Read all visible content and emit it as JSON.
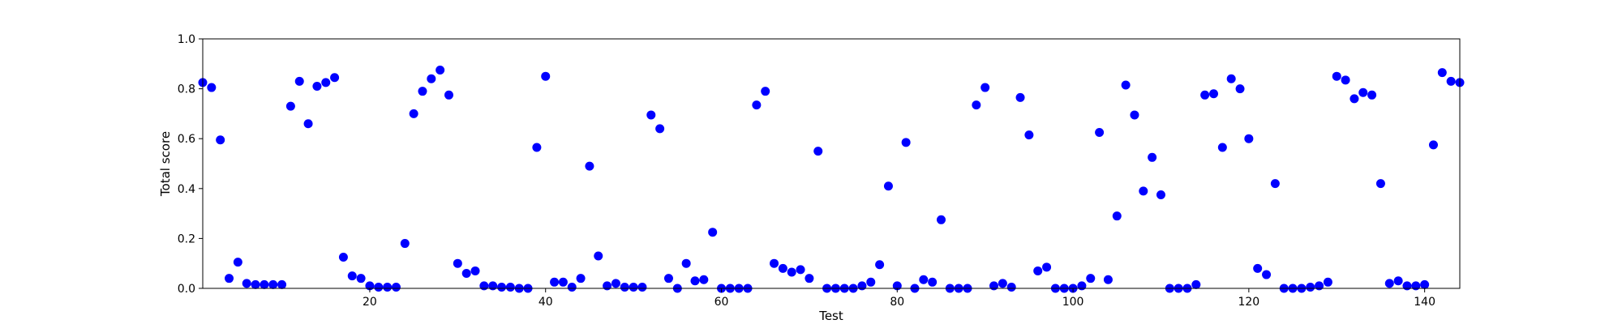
{
  "chart_data": {
    "type": "scatter",
    "title": "",
    "xlabel": "Test",
    "ylabel": "Total score",
    "xlim": [
      1,
      144
    ],
    "ylim": [
      0.0,
      1.0
    ],
    "xticks": [
      20,
      40,
      60,
      80,
      100,
      120,
      140
    ],
    "xtick_labels": [
      "20",
      "40",
      "60",
      "80",
      "100",
      "120",
      "140"
    ],
    "yticks": [
      0.0,
      0.2,
      0.4,
      0.6,
      0.8,
      1.0
    ],
    "ytick_labels": [
      "0.0",
      "0.2",
      "0.4",
      "0.6",
      "0.8",
      "1.0"
    ],
    "grid": false,
    "marker_color": "#0000ff",
    "series": [
      {
        "x": [
          1,
          2,
          3,
          4,
          5,
          6,
          7,
          8,
          9,
          10,
          11,
          12,
          13,
          14,
          15,
          16,
          17,
          18,
          19,
          20,
          21,
          22,
          23,
          24,
          25,
          26,
          27,
          28,
          29,
          30,
          31,
          32,
          33,
          34,
          35,
          36,
          37,
          38,
          39,
          40,
          41,
          42,
          43,
          44,
          45,
          46,
          47,
          48,
          49,
          50,
          51,
          52,
          53,
          54,
          55,
          56,
          57,
          58,
          59,
          60,
          61,
          62,
          63,
          64,
          65,
          66,
          67,
          68,
          69,
          70,
          71,
          72,
          73,
          74,
          75,
          76,
          77,
          78,
          79,
          80,
          81,
          82,
          83,
          84,
          85,
          86,
          87,
          88,
          89,
          90,
          91,
          92,
          93,
          94,
          95,
          96,
          97,
          98,
          99,
          100,
          101,
          102,
          103,
          104,
          105,
          106,
          107,
          108,
          109,
          110,
          111,
          112,
          113,
          114,
          115,
          116,
          117,
          118,
          119,
          120,
          121,
          122,
          123,
          124,
          125,
          126,
          127,
          128,
          129,
          130,
          131,
          132,
          133,
          134,
          135,
          136,
          137,
          138,
          139,
          140,
          141,
          142,
          143,
          144
        ],
        "y": [
          0.825,
          0.805,
          0.595,
          0.04,
          0.105,
          0.02,
          0.015,
          0.015,
          0.015,
          0.015,
          0.73,
          0.83,
          0.66,
          0.81,
          0.825,
          0.845,
          0.125,
          0.05,
          0.04,
          0.01,
          0.005,
          0.005,
          0.005,
          0.18,
          0.7,
          0.79,
          0.84,
          0.875,
          0.775,
          0.1,
          0.06,
          0.07,
          0.01,
          0.01,
          0.005,
          0.005,
          0.0,
          0.0,
          0.565,
          0.85,
          0.025,
          0.025,
          0.005,
          0.04,
          0.49,
          0.13,
          0.01,
          0.02,
          0.005,
          0.005,
          0.005,
          0.695,
          0.64,
          0.04,
          0.0,
          0.1,
          0.03,
          0.035,
          0.225,
          0.0,
          0.0,
          0.0,
          0.0,
          0.735,
          0.79,
          0.1,
          0.08,
          0.065,
          0.075,
          0.04,
          0.55,
          0.0,
          0.0,
          0.0,
          0.0,
          0.01,
          0.025,
          0.095,
          0.41,
          0.01,
          0.585,
          0.0,
          0.035,
          0.025,
          0.275,
          0.0,
          0.0,
          0.0,
          0.735,
          0.805,
          0.01,
          0.02,
          0.005,
          0.765,
          0.615,
          0.07,
          0.085,
          0.0,
          0.0,
          0.0,
          0.01,
          0.04,
          0.625,
          0.035,
          0.29,
          0.815,
          0.695,
          0.39,
          0.525,
          0.375,
          0.0,
          0.0,
          0.0,
          0.015,
          0.775,
          0.78,
          0.565,
          0.84,
          0.8,
          0.6,
          0.08,
          0.055,
          0.42,
          0.0,
          0.0,
          0.0,
          0.005,
          0.01,
          0.025,
          0.85,
          0.835,
          0.76,
          0.785,
          0.775,
          0.42,
          0.02,
          0.03,
          0.01,
          0.01,
          0.015,
          0.575,
          0.865,
          0.83,
          0.825
        ]
      }
    ]
  }
}
